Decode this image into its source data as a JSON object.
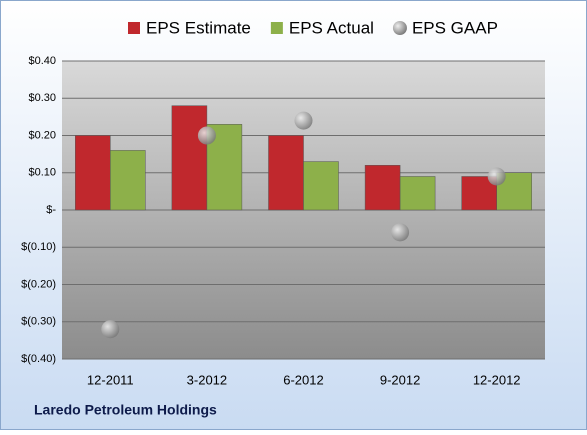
{
  "chart_data": {
    "type": "bar",
    "title": "Laredo Petroleum Holdings",
    "categories": [
      "12-2011",
      "3-2012",
      "6-2012",
      "9-2012",
      "12-2012"
    ],
    "series": [
      {
        "name": "EPS Estimate",
        "color": "#c0282d",
        "values": [
          0.2,
          0.28,
          0.2,
          0.12,
          0.09
        ]
      },
      {
        "name": "EPS Actual",
        "color": "#8db04a",
        "values": [
          0.16,
          0.23,
          0.13,
          0.09,
          0.1
        ]
      },
      {
        "name": "EPS GAAP",
        "color": "#a6a6a6",
        "type": "scatter",
        "values": [
          -0.32,
          0.2,
          0.24,
          -0.06,
          0.09
        ]
      }
    ],
    "ylim": [
      -0.4,
      0.4
    ],
    "yticks": [
      {
        "value": -0.4,
        "label": "$(0.40)"
      },
      {
        "value": -0.3,
        "label": "$(0.30)"
      },
      {
        "value": -0.2,
        "label": "$(0.20)"
      },
      {
        "value": -0.1,
        "label": "$(0.10)"
      },
      {
        "value": 0,
        "label": "$-"
      },
      {
        "value": 0.1,
        "label": "$0.10"
      },
      {
        "value": 0.2,
        "label": "$0.20"
      },
      {
        "value": 0.3,
        "label": "$0.30"
      },
      {
        "value": 0.4,
        "label": "$0.40"
      }
    ],
    "grid": true
  }
}
